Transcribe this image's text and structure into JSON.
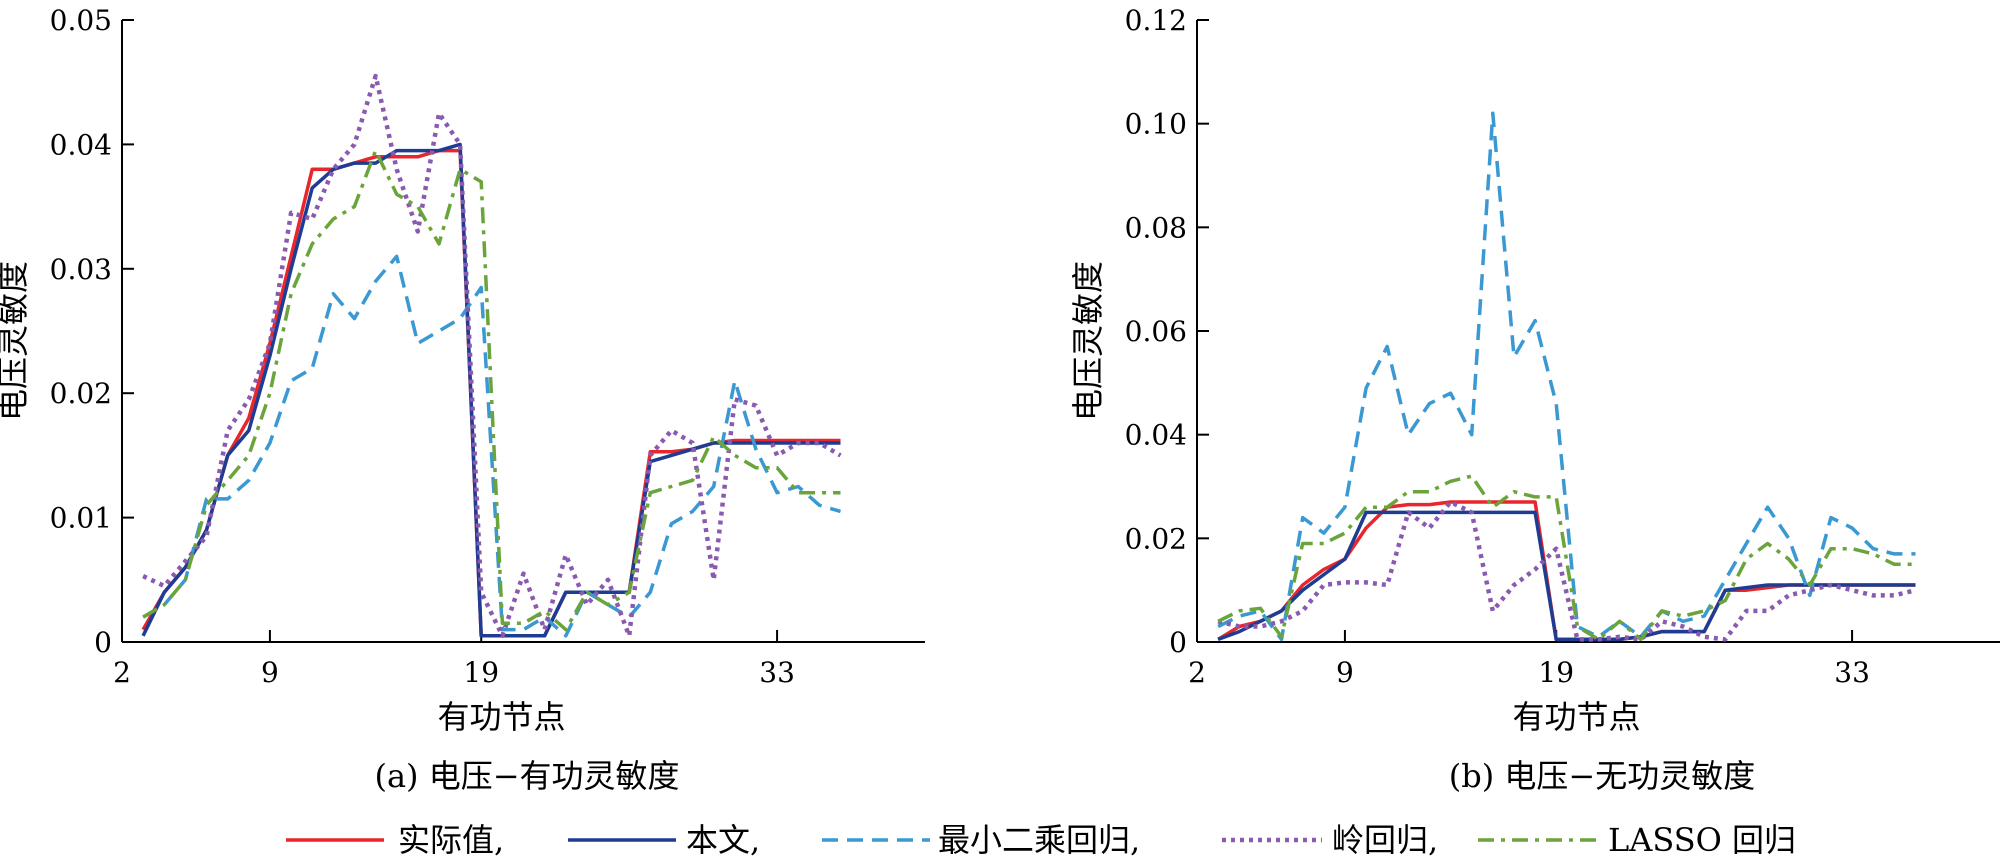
{
  "legend": [
    {
      "key": "actual",
      "label": "实际值,"
    },
    {
      "key": "proposed",
      "label": "本文,"
    },
    {
      "key": "ols",
      "label": "最小二乘回归,"
    },
    {
      "key": "ridge",
      "label": "岭回归,"
    },
    {
      "key": "lasso",
      "label": "LASSO 回归"
    }
  ],
  "colors": {
    "actual": "#e8262b",
    "proposed": "#1f3c93",
    "ols": "#3a98d2",
    "ridge": "#8a5ab0",
    "lasso": "#6aa43a"
  },
  "chart_data": [
    {
      "type": "line",
      "caption": "(a)  电压−有功灵敏度",
      "xlabel": "有功节点",
      "ylabel": "电压灵敏度",
      "xticks": [
        2,
        9,
        19,
        33
      ],
      "yticks": [
        0,
        0.01,
        0.02,
        0.03,
        0.04,
        0.05
      ],
      "ytick_labels": [
        "0",
        "0.01",
        "0.02",
        "0.03",
        "0.04",
        "0.05"
      ],
      "xlim": [
        2,
        40
      ],
      "ylim": [
        0,
        0.05
      ],
      "x": [
        3,
        4,
        5,
        6,
        7,
        8,
        9,
        10,
        11,
        12,
        13,
        14,
        15,
        16,
        17,
        18,
        19,
        20,
        21,
        22,
        23,
        24,
        25,
        26,
        27,
        28,
        29,
        30,
        31,
        32,
        33,
        34,
        35,
        36
      ],
      "series": [
        {
          "key": "actual",
          "style": "solid",
          "values": [
            0.001,
            0.004,
            0.006,
            0.009,
            0.015,
            0.018,
            0.024,
            0.031,
            0.038,
            0.038,
            0.0385,
            0.039,
            0.039,
            0.039,
            0.0395,
            0.0395,
            0.0005,
            0.0005,
            0.0005,
            0.0005,
            0.004,
            0.004,
            0.004,
            0.004,
            0.0153,
            0.0153,
            0.0155,
            0.016,
            0.0162,
            0.0162,
            0.0162,
            0.0162,
            0.0162,
            0.0162
          ]
        },
        {
          "key": "proposed",
          "style": "solid",
          "values": [
            0.0005,
            0.004,
            0.006,
            0.009,
            0.015,
            0.017,
            0.023,
            0.03,
            0.0365,
            0.038,
            0.0385,
            0.0385,
            0.0395,
            0.0395,
            0.0395,
            0.04,
            0.0005,
            0.0005,
            0.0005,
            0.0005,
            0.004,
            0.004,
            0.004,
            0.004,
            0.0145,
            0.015,
            0.0155,
            0.016,
            0.016,
            0.016,
            0.016,
            0.016,
            0.016,
            0.016
          ]
        },
        {
          "key": "ols",
          "style": "dashed",
          "values": [
            0.002,
            0.003,
            0.005,
            0.0115,
            0.0115,
            0.013,
            0.016,
            0.021,
            0.022,
            0.028,
            0.026,
            0.029,
            0.031,
            0.024,
            0.025,
            0.026,
            0.0285,
            0.001,
            0.001,
            0.002,
            0.0005,
            0.004,
            0.003,
            0.002,
            0.004,
            0.0095,
            0.0105,
            0.0125,
            0.021,
            0.0155,
            0.012,
            0.0125,
            0.011,
            0.0105
          ]
        },
        {
          "key": "ridge",
          "style": "dotted",
          "values": [
            0.0053,
            0.0045,
            0.0065,
            0.0085,
            0.017,
            0.0195,
            0.024,
            0.0345,
            0.034,
            0.038,
            0.04,
            0.0455,
            0.038,
            0.033,
            0.0425,
            0.04,
            0.004,
            0.0005,
            0.0055,
            0.001,
            0.007,
            0.003,
            0.005,
            0.0005,
            0.015,
            0.017,
            0.016,
            0.005,
            0.0195,
            0.019,
            0.015,
            0.016,
            0.016,
            0.015
          ]
        },
        {
          "key": "lasso",
          "style": "dashdot",
          "values": [
            0.002,
            0.003,
            0.005,
            0.011,
            0.013,
            0.015,
            0.02,
            0.028,
            0.032,
            0.034,
            0.035,
            0.0395,
            0.036,
            0.035,
            0.032,
            0.038,
            0.037,
            0.0015,
            0.0015,
            0.0025,
            0.001,
            0.004,
            0.003,
            0.004,
            0.012,
            0.0125,
            0.013,
            0.0165,
            0.015,
            0.014,
            0.014,
            0.012,
            0.012,
            0.012
          ]
        }
      ]
    },
    {
      "type": "line",
      "caption": "(b)  电压−无功灵敏度",
      "xlabel": "有功节点",
      "ylabel": "电压灵敏度",
      "xticks": [
        2,
        9,
        19,
        33
      ],
      "yticks": [
        0,
        0.02,
        0.04,
        0.06,
        0.08,
        0.1,
        0.12
      ],
      "ytick_labels": [
        "0",
        "0.02",
        "0.04",
        "0.06",
        "0.08",
        "0.10",
        "0.12"
      ],
      "xlim": [
        2,
        40
      ],
      "ylim": [
        0,
        0.12
      ],
      "x": [
        3,
        4,
        5,
        6,
        7,
        8,
        9,
        10,
        11,
        12,
        13,
        14,
        15,
        16,
        17,
        18,
        19,
        20,
        21,
        22,
        23,
        24,
        25,
        26,
        27,
        28,
        29,
        30,
        31,
        32,
        33,
        34,
        35,
        36
      ],
      "series": [
        {
          "key": "actual",
          "style": "solid",
          "values": [
            0.0005,
            0.003,
            0.004,
            0.006,
            0.011,
            0.014,
            0.016,
            0.022,
            0.026,
            0.0265,
            0.0265,
            0.027,
            0.027,
            0.027,
            0.027,
            0.027,
            0.0005,
            0.0005,
            0.0005,
            0.0005,
            0.001,
            0.002,
            0.002,
            0.002,
            0.01,
            0.01,
            0.0105,
            0.011,
            0.011,
            0.011,
            0.011,
            0.011,
            0.011,
            0.011
          ]
        },
        {
          "key": "proposed",
          "style": "solid",
          "values": [
            0.0005,
            0.002,
            0.004,
            0.006,
            0.01,
            0.013,
            0.016,
            0.025,
            0.025,
            0.025,
            0.025,
            0.025,
            0.025,
            0.025,
            0.025,
            0.025,
            0.0005,
            0.0005,
            0.0005,
            0.0005,
            0.001,
            0.002,
            0.002,
            0.002,
            0.01,
            0.0105,
            0.011,
            0.011,
            0.011,
            0.011,
            0.011,
            0.011,
            0.011,
            0.011
          ]
        },
        {
          "key": "ols",
          "style": "dashed",
          "values": [
            0.003,
            0.005,
            0.006,
            0.0005,
            0.024,
            0.021,
            0.026,
            0.049,
            0.057,
            0.04,
            0.046,
            0.048,
            0.04,
            0.102,
            0.055,
            0.062,
            0.046,
            0.003,
            0.001,
            0.004,
            0.001,
            0.006,
            0.004,
            0.005,
            0.012,
            0.019,
            0.026,
            0.02,
            0.009,
            0.024,
            0.022,
            0.018,
            0.017,
            0.017
          ]
        },
        {
          "key": "ridge",
          "style": "dotted",
          "values": [
            0.004,
            0.003,
            0.003,
            0.004,
            0.006,
            0.011,
            0.0115,
            0.0115,
            0.011,
            0.025,
            0.022,
            0.027,
            0.025,
            0.006,
            0.011,
            0.014,
            0.018,
            0.0005,
            0.0005,
            0.001,
            0.0005,
            0.004,
            0.003,
            0.001,
            0.0005,
            0.006,
            0.006,
            0.009,
            0.01,
            0.011,
            0.01,
            0.009,
            0.009,
            0.01
          ]
        },
        {
          "key": "lasso",
          "style": "dashdot",
          "values": [
            0.004,
            0.006,
            0.0065,
            0.001,
            0.019,
            0.019,
            0.021,
            0.026,
            0.026,
            0.029,
            0.029,
            0.031,
            0.032,
            0.026,
            0.029,
            0.028,
            0.028,
            0.003,
            0.0005,
            0.004,
            0.0005,
            0.006,
            0.005,
            0.006,
            0.008,
            0.016,
            0.019,
            0.016,
            0.011,
            0.018,
            0.018,
            0.017,
            0.015,
            0.015
          ]
        }
      ]
    }
  ]
}
